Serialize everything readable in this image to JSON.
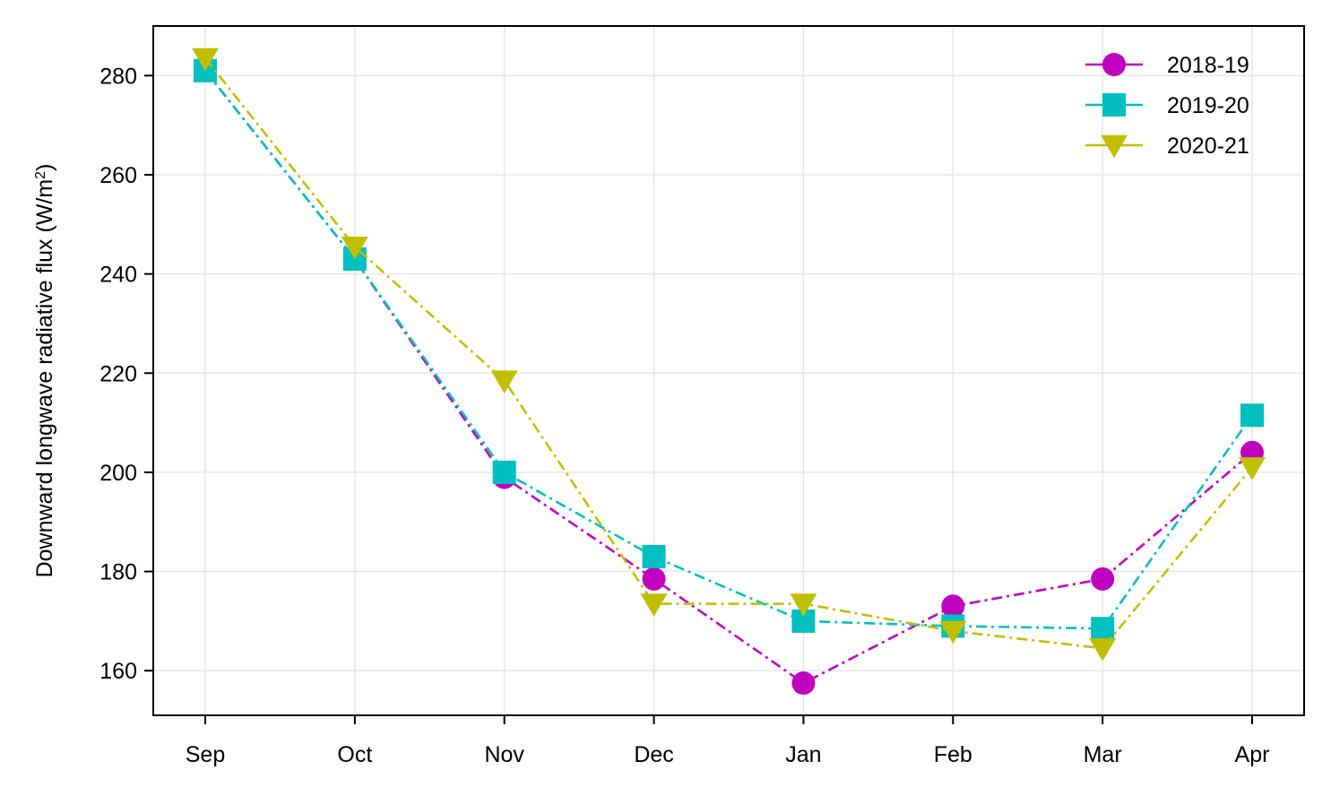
{
  "chart_data": {
    "type": "line",
    "categories": [
      "Sep",
      "Oct",
      "Nov",
      "Dec",
      "Jan",
      "Feb",
      "Mar",
      "Apr"
    ],
    "ylabel": "Downward longwave radiative flux (W/m",
    "ylabel_sup": "2",
    "ylabel_close": ")",
    "xlabel": "",
    "title": "",
    "ylim": [
      151,
      290
    ],
    "yticks": [
      160,
      180,
      200,
      220,
      240,
      260,
      280
    ],
    "grid": true,
    "legend_position": "top-right",
    "series": [
      {
        "name": "2018-19",
        "color": "#bf00bf",
        "marker": "circle",
        "linestyle": "dashdot",
        "values": [
          281,
          243,
          199,
          178.5,
          157.5,
          173,
          178.5,
          204
        ]
      },
      {
        "name": "2019-20",
        "color": "#00bfbf",
        "marker": "square",
        "linestyle": "dashdot",
        "values": [
          281,
          243,
          200,
          183,
          170,
          169,
          168.5,
          211.5
        ]
      },
      {
        "name": "2020-21",
        "color": "#bfbf00",
        "marker": "triangle-down",
        "linestyle": "dashdot",
        "values": [
          283.5,
          245.5,
          218.5,
          173.5,
          173.5,
          168,
          164.5,
          201
        ]
      }
    ]
  }
}
